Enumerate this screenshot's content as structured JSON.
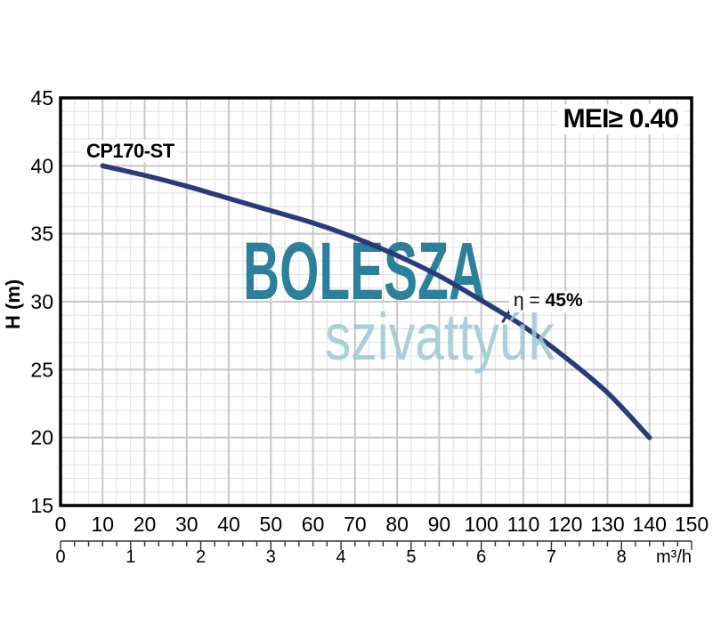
{
  "watermark": {
    "line1": "BOLESZA",
    "line2": "szivattyúk"
  },
  "chart_data": {
    "type": "line",
    "curve_label": "CP170-ST",
    "mei_label": "MEI≥ 0.40",
    "efficiency_prefix": "η = ",
    "efficiency_value": "45%",
    "efficiency_point": {
      "x": 106,
      "h": 29
    },
    "ylabel": "H (m)",
    "x_axis": {
      "min": 0,
      "max": 150,
      "major_step": 10,
      "minor_step": 3.3333,
      "labels": [
        "0",
        "10",
        "20",
        "30",
        "40",
        "50",
        "60",
        "70",
        "80",
        "90",
        "100",
        "110",
        "120",
        "130",
        "140",
        "150"
      ]
    },
    "y_axis": {
      "min": 15,
      "max": 45,
      "major_step": 5,
      "minor_step": 1,
      "labels": [
        "45",
        "40",
        "35",
        "30",
        "25",
        "20",
        "15"
      ]
    },
    "x_axis_secondary": {
      "min": 0,
      "max": 9,
      "major_step": 1,
      "minor_step": 0.2,
      "labels": [
        "0",
        "1",
        "2",
        "3",
        "4",
        "5",
        "6",
        "7",
        "8"
      ],
      "unit": "m³/h"
    },
    "series": [
      {
        "name": "CP170-ST",
        "points": [
          [
            10,
            40.0
          ],
          [
            20,
            39.3
          ],
          [
            30,
            38.5
          ],
          [
            40,
            37.6
          ],
          [
            50,
            36.7
          ],
          [
            60,
            35.8
          ],
          [
            70,
            34.7
          ],
          [
            80,
            33.4
          ],
          [
            90,
            31.9
          ],
          [
            100,
            30.1
          ],
          [
            110,
            28.2
          ],
          [
            120,
            25.9
          ],
          [
            130,
            23.3
          ],
          [
            140,
            20.0
          ]
        ]
      }
    ],
    "colors": {
      "curve": "#2b3a78",
      "grid_minor": "#e4e4e4",
      "grid_major": "#c8c8c8",
      "axis_border": "#000000",
      "secondary_axis": "#303030",
      "tick_label": "#000000",
      "watermark_primary": "#2e7f9a",
      "watermark_secondary": "#9cc8d3"
    }
  }
}
